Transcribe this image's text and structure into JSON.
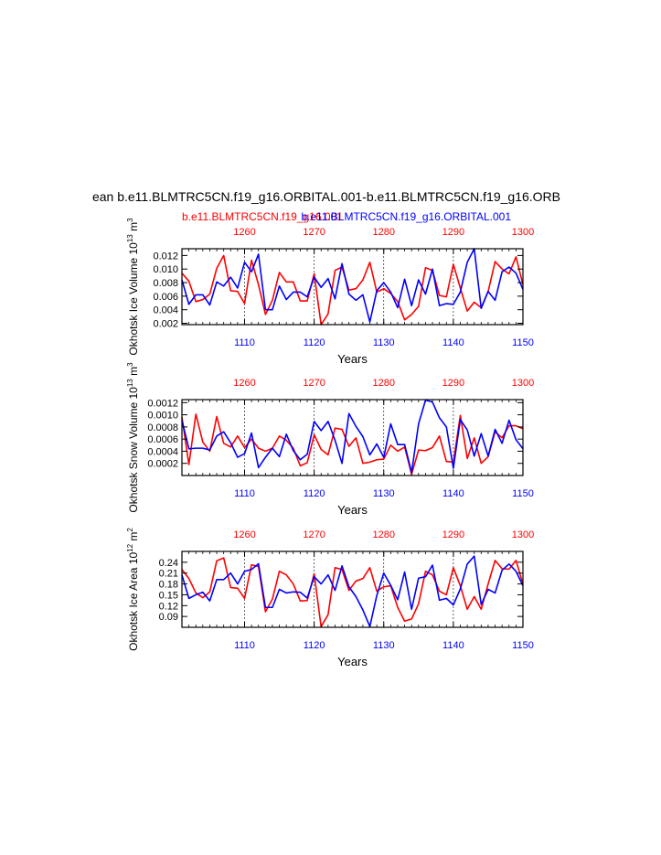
{
  "figure": {
    "main_title": "ean b.e11.BLMTRC5CN.f19_g16.ORBITAL.001-b.e11.BLMTRC5CN.f19_g16.ORB",
    "left_title": "b.e11.BLMTRC5CN.f19_g16.001",
    "right_title": "b.e11.BLMTRC5CN.f19_g16.ORBITAL.001",
    "colors": {
      "red": "#ff0000",
      "blue": "#0000ff",
      "axis": "#000000"
    }
  },
  "chart_data": [
    {
      "type": "line",
      "title": "",
      "xlabel": "Years",
      "ylabel": "Okhotsk Ice Volume 10^13 m^3",
      "ylabel_parts": {
        "text": "Okhotsk Ice Volume 10",
        "exp1": "13",
        "unit": " m",
        "exp2": "3"
      },
      "bottom_axis": {
        "range": [
          1101,
          1150
        ],
        "ticks": [
          "1110",
          "1120",
          "1130",
          "1140",
          "1150"
        ]
      },
      "top_axis": {
        "range": [
          1251,
          1300
        ],
        "ticks": [
          "1260",
          "1270",
          "1280",
          "1290",
          "1300"
        ]
      },
      "ylim": [
        0.0018,
        0.013
      ],
      "yticks": [
        "0.002",
        "0.004",
        "0.006",
        "0.008",
        "0.010",
        "0.012"
      ],
      "series": [
        {
          "name": "b.e11.BLMTRC5CN.f19_g16.001",
          "color": "#ff0000",
          "values": [
            0.0094,
            0.0082,
            0.0052,
            0.0055,
            0.0063,
            0.0101,
            0.012,
            0.0068,
            0.0067,
            0.0049,
            0.0113,
            0.0077,
            0.0033,
            0.0054,
            0.0095,
            0.0081,
            0.0081,
            0.0053,
            0.0053,
            0.0093,
            0.0018,
            0.0034,
            0.0098,
            0.0103,
            0.0069,
            0.0071,
            0.0084,
            0.011,
            0.0066,
            0.0071,
            0.0064,
            0.0052,
            0.0025,
            0.0033,
            0.0045,
            0.0102,
            0.0098,
            0.0061,
            0.0059,
            0.0107,
            0.0072,
            0.0038,
            0.0051,
            0.0043,
            0.0067,
            0.0111,
            0.01,
            0.0093,
            0.0118,
            0.0077
          ]
        },
        {
          "name": "b.e11.BLMTRC5CN.f19_g16.ORBITAL.001",
          "color": "#0000ff",
          "values": [
            0.0084,
            0.0048,
            0.0062,
            0.0062,
            0.0047,
            0.0081,
            0.0075,
            0.0088,
            0.0072,
            0.011,
            0.0096,
            0.0122,
            0.004,
            0.004,
            0.0075,
            0.0055,
            0.0066,
            0.0066,
            0.0059,
            0.0088,
            0.0073,
            0.0086,
            0.0056,
            0.0108,
            0.0063,
            0.0054,
            0.0062,
            0.0022,
            0.0068,
            0.008,
            0.0066,
            0.0043,
            0.0085,
            0.0046,
            0.0084,
            0.0063,
            0.01,
            0.0046,
            0.0049,
            0.0048,
            0.0066,
            0.011,
            0.013,
            0.0042,
            0.0067,
            0.0054,
            0.0096,
            0.0103,
            0.0094,
            0.007
          ]
        }
      ]
    },
    {
      "type": "line",
      "title": "",
      "xlabel": "Years",
      "ylabel": "Okhotsk Snow Volume 10^13 m^3",
      "ylabel_parts": {
        "text": "Okhotsk Snow Volume 10",
        "exp1": "13",
        "unit": " m",
        "exp2": "3"
      },
      "bottom_axis": {
        "range": [
          1101,
          1150
        ],
        "ticks": [
          "1110",
          "1120",
          "1130",
          "1140",
          "1150"
        ]
      },
      "top_axis": {
        "range": [
          1251,
          1300
        ],
        "ticks": [
          "1260",
          "1270",
          "1280",
          "1290",
          "1300"
        ]
      },
      "ylim": [
        0.0,
        0.00125
      ],
      "yticks": [
        "0.0002",
        "0.0004",
        "0.0006",
        "0.0008",
        "0.0010",
        "0.0012"
      ],
      "series": [
        {
          "name": "b.e11.BLMTRC5CN.f19_g16.001",
          "color": "#ff0000",
          "values": [
            0.00096,
            0.00018,
            0.00101,
            0.00055,
            0.0004,
            0.00097,
            0.00053,
            0.00047,
            0.00065,
            0.00046,
            0.0006,
            0.00045,
            0.0004,
            0.00045,
            0.00065,
            0.00058,
            0.00045,
            0.00016,
            0.00021,
            0.00067,
            0.00043,
            0.00034,
            0.00078,
            0.00076,
            0.00048,
            0.00062,
            0.0002,
            0.00022,
            0.00026,
            0.00027,
            0.0005,
            0.0004,
            0.00047,
            2e-05,
            0.00042,
            0.00041,
            0.00046,
            0.00065,
            0.00023,
            0.00022,
            0.00099,
            0.00028,
            0.00062,
            0.0002,
            0.00031,
            0.00072,
            0.00062,
            0.00082,
            0.00082,
            0.00077
          ]
        },
        {
          "name": "b.e11.BLMTRC5CN.f19_g16.ORBITAL.001",
          "color": "#0000ff",
          "values": [
            0.00091,
            0.00044,
            0.00045,
            0.00045,
            0.00042,
            0.00065,
            0.00072,
            0.00054,
            0.0003,
            0.00036,
            0.0007,
            0.00013,
            0.0003,
            0.00045,
            0.00031,
            0.00068,
            0.00041,
            0.00026,
            0.00035,
            0.00089,
            0.00074,
            0.00089,
            0.00058,
            0.0002,
            0.00102,
            0.00081,
            0.00064,
            0.00034,
            0.00052,
            0.0003,
            0.00085,
            0.00051,
            0.00051,
            5e-05,
            0.00085,
            0.00124,
            0.00121,
            0.00095,
            0.0008,
            0.00012,
            0.00092,
            0.00075,
            0.00032,
            0.00069,
            0.00032,
            0.00076,
            0.00053,
            0.00091,
            0.00059,
            0.00044
          ]
        }
      ]
    },
    {
      "type": "line",
      "title": "",
      "xlabel": "Years",
      "ylabel": "Okhotsk Ice Area 10^12 m^2",
      "ylabel_parts": {
        "text": "Okhotsk Ice Area 10",
        "exp1": "12",
        "unit": " m",
        "exp2": "2"
      },
      "bottom_axis": {
        "range": [
          1101,
          1150
        ],
        "ticks": [
          "1110",
          "1120",
          "1130",
          "1140",
          "1150"
        ]
      },
      "top_axis": {
        "range": [
          1251,
          1300
        ],
        "ticks": [
          "1260",
          "1270",
          "1280",
          "1290",
          "1300"
        ]
      },
      "ylim": [
        0.06,
        0.27
      ],
      "yticks": [
        "0.09",
        "0.12",
        "0.15",
        "0.18",
        "0.21",
        "0.24"
      ],
      "series": [
        {
          "name": "b.e11.BLMTRC5CN.f19_g16.001",
          "color": "#ff0000",
          "values": [
            0.22,
            0.195,
            0.155,
            0.142,
            0.158,
            0.244,
            0.252,
            0.17,
            0.168,
            0.14,
            0.233,
            0.228,
            0.103,
            0.138,
            0.215,
            0.205,
            0.18,
            0.133,
            0.134,
            0.208,
            0.062,
            0.095,
            0.225,
            0.22,
            0.162,
            0.188,
            0.195,
            0.225,
            0.16,
            0.172,
            0.175,
            0.115,
            0.077,
            0.083,
            0.125,
            0.215,
            0.205,
            0.16,
            0.15,
            0.225,
            0.175,
            0.11,
            0.145,
            0.11,
            0.18,
            0.245,
            0.222,
            0.221,
            0.245,
            0.18
          ]
        },
        {
          "name": "b.e11.BLMTRC5CN.f19_g16.ORBITAL.001",
          "color": "#0000ff",
          "values": [
            0.205,
            0.14,
            0.15,
            0.157,
            0.133,
            0.192,
            0.192,
            0.21,
            0.18,
            0.215,
            0.22,
            0.236,
            0.115,
            0.115,
            0.165,
            0.155,
            0.158,
            0.157,
            0.141,
            0.2,
            0.18,
            0.205,
            0.162,
            0.23,
            0.172,
            0.145,
            0.108,
            0.062,
            0.148,
            0.21,
            0.176,
            0.136,
            0.213,
            0.11,
            0.196,
            0.2,
            0.232,
            0.135,
            0.14,
            0.122,
            0.166,
            0.235,
            0.257,
            0.123,
            0.165,
            0.155,
            0.218,
            0.235,
            0.215,
            0.175
          ]
        }
      ]
    }
  ]
}
